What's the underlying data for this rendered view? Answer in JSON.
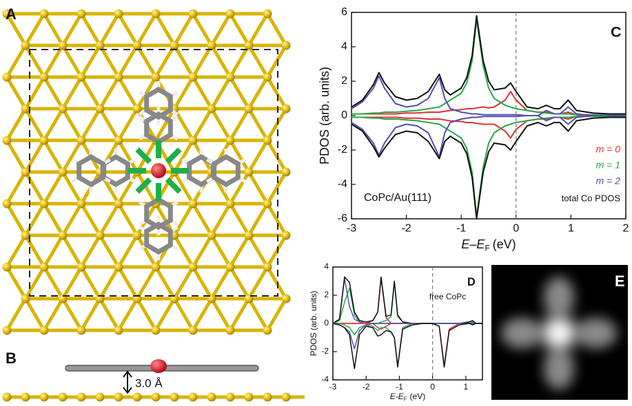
{
  "figure": {
    "panel_labels": [
      "A",
      "B",
      "E"
    ],
    "distance_label": "3.0 Å"
  },
  "chart_data": [
    {
      "type": "line",
      "panel_label": "C",
      "annotation": "CoPc/Au(111)",
      "y_label": "PDOS (arb. units)",
      "x_label": {
        "text": "E–E",
        "subscript": "F",
        "unit": "(eV)"
      },
      "xlim": [
        -3,
        2
      ],
      "xticks": [
        -3,
        -2,
        -1,
        0,
        1,
        2
      ],
      "ylim": [
        -6,
        6
      ],
      "yticks": [
        -6,
        -4,
        -2,
        0,
        2,
        4,
        6
      ],
      "reference_line_x": 0,
      "legend": "lower right",
      "x": [
        -3,
        -2.8,
        -2.6,
        -2.5,
        -2.4,
        -2.2,
        -2.0,
        -1.8,
        -1.6,
        -1.5,
        -1.4,
        -1.3,
        -1.2,
        -1.0,
        -0.9,
        -0.8,
        -0.72,
        -0.6,
        -0.5,
        -0.4,
        -0.2,
        -0.1,
        0,
        0.2,
        0.4,
        0.55,
        0.7,
        0.8,
        0.95,
        1.1,
        1.4,
        1.7,
        2.0
      ],
      "series": [
        {
          "name": "m = 0",
          "color": "#e03030",
          "values": [
            0.1,
            0.1,
            0.1,
            0.1,
            0.1,
            0.1,
            0.15,
            0.15,
            0.2,
            0.2,
            0.2,
            0.25,
            0.3,
            0.35,
            0.4,
            0.4,
            0.45,
            0.5,
            0.45,
            0.5,
            0.9,
            1.4,
            0.9,
            0.3,
            0.2,
            0.2,
            0.1,
            0.1,
            0.2,
            0.05,
            0,
            0,
            0
          ]
        },
        {
          "name": "m = 1",
          "color": "#2aa84a",
          "values": [
            0.1,
            0.1,
            0.15,
            0.15,
            0.2,
            0.2,
            0.25,
            0.3,
            0.4,
            0.45,
            0.5,
            0.7,
            0.9,
            1.3,
            1.9,
            3.2,
            5.6,
            2.9,
            1.6,
            1.0,
            0.6,
            0.5,
            0.4,
            0.3,
            0.2,
            0.15,
            0.1,
            0.1,
            0.1,
            0.05,
            0.05,
            0.05,
            0.05
          ]
        },
        {
          "name": "m = 2",
          "color": "#5050b0",
          "values": [
            0.4,
            0.8,
            1.6,
            2.3,
            1.6,
            0.7,
            0.5,
            0.6,
            1.0,
            1.6,
            2.2,
            1.0,
            0.4,
            0.2,
            0.15,
            0.1,
            0.1,
            0.05,
            0.05,
            0.05,
            0.05,
            0.05,
            0.05,
            0,
            0,
            0.3,
            0.1,
            0.1,
            0.5,
            0.1,
            0,
            0,
            0
          ]
        },
        {
          "name": "total Co PDOS",
          "color": "#111111",
          "values": [
            0.5,
            0.9,
            1.8,
            2.5,
            1.9,
            1.1,
            0.9,
            1.0,
            1.4,
            1.9,
            2.4,
            1.5,
            1.2,
            1.6,
            2.2,
            3.5,
            5.8,
            3.2,
            2.0,
            1.5,
            1.6,
            1.9,
            1.4,
            0.5,
            0.4,
            0.6,
            0.4,
            0.4,
            0.9,
            0.3,
            0.15,
            0.1,
            0.1
          ]
        },
        {
          "color": "#e03030",
          "values": [
            -0.1,
            -0.1,
            -0.1,
            -0.1,
            -0.1,
            -0.1,
            -0.15,
            -0.15,
            -0.2,
            -0.2,
            -0.2,
            -0.25,
            -0.3,
            -0.35,
            -0.4,
            -0.4,
            -0.45,
            -0.5,
            -0.5,
            -0.5,
            -0.9,
            -1.3,
            -0.8,
            -0.3,
            -0.2,
            -0.2,
            -0.1,
            -0.1,
            -0.2,
            -0.05,
            0,
            0,
            0
          ]
        },
        {
          "color": "#2aa84a",
          "values": [
            -0.1,
            -0.1,
            -0.15,
            -0.15,
            -0.2,
            -0.2,
            -0.25,
            -0.3,
            -0.4,
            -0.45,
            -0.5,
            -0.7,
            -0.9,
            -1.3,
            -1.9,
            -3.3,
            -5.9,
            -3.0,
            -1.6,
            -1.0,
            -0.6,
            -0.5,
            -0.4,
            -0.3,
            -0.2,
            -0.15,
            -0.1,
            -0.1,
            -0.1,
            -0.05,
            -0.05,
            -0.05,
            -0.05
          ]
        },
        {
          "color": "#5050b0",
          "values": [
            -0.4,
            -0.8,
            -1.6,
            -2.3,
            -1.6,
            -0.7,
            -0.5,
            -0.6,
            -1.0,
            -1.7,
            -2.4,
            -1.0,
            -0.4,
            -0.2,
            -0.15,
            -0.1,
            -0.1,
            -0.05,
            -0.05,
            -0.05,
            -0.05,
            -0.05,
            -0.05,
            0,
            0,
            -0.3,
            -0.1,
            -0.1,
            -0.5,
            -0.1,
            0,
            0,
            0
          ]
        },
        {
          "color": "#111111",
          "values": [
            -0.5,
            -0.9,
            -1.8,
            -2.4,
            -1.9,
            -1.1,
            -0.9,
            -1.0,
            -1.5,
            -2.0,
            -2.5,
            -1.5,
            -1.2,
            -1.6,
            -2.2,
            -3.6,
            -6.0,
            -3.3,
            -2.1,
            -1.6,
            -1.7,
            -2.0,
            -1.5,
            -0.6,
            -0.4,
            -0.6,
            -0.4,
            -0.4,
            -0.9,
            -0.3,
            -0.15,
            -0.1,
            -0.1
          ]
        }
      ]
    },
    {
      "type": "line",
      "panel_label": "D",
      "annotation": "free CoPc",
      "y_label": "PDOS (arb. units)",
      "x_label": {
        "text": "E-E",
        "subscript": "F",
        "unit": "(eV)"
      },
      "xlim": [
        -3,
        1.5
      ],
      "xticks": [
        -3,
        -2,
        -1,
        0,
        1
      ],
      "ylim": [
        -4,
        4
      ],
      "yticks": [
        -4,
        -2,
        0,
        2,
        4
      ],
      "reference_line_x": 0,
      "x": [
        -3,
        -2.8,
        -2.65,
        -2.5,
        -2.35,
        -2.2,
        -2.0,
        -1.8,
        -1.65,
        -1.55,
        -1.4,
        -1.25,
        -1.15,
        -1.05,
        -0.9,
        -0.6,
        -0.3,
        0,
        0.2,
        0.35,
        0.5,
        0.8,
        1.1,
        1.2,
        1.3,
        1.5
      ],
      "series": [
        {
          "color": "#e03030",
          "values": [
            0,
            0,
            0,
            0,
            0,
            0,
            0,
            0.2,
            0.8,
            3.2,
            0.4,
            0,
            0,
            0,
            0,
            0,
            0,
            0,
            0,
            0,
            0,
            0,
            0,
            0,
            0,
            0
          ]
        },
        {
          "color": "#2aa84a",
          "values": [
            0,
            0.2,
            1.5,
            2.5,
            0.6,
            0.1,
            0,
            0,
            0,
            0.1,
            0.2,
            0.5,
            2.9,
            0.5,
            0.1,
            0,
            0,
            0,
            0,
            0,
            0,
            0,
            0,
            0.1,
            0,
            0
          ]
        },
        {
          "color": "#5050b0",
          "values": [
            0,
            0.3,
            3.2,
            1.2,
            0.3,
            0.1,
            0,
            0,
            0,
            0,
            0,
            0,
            0,
            0,
            0,
            0,
            0,
            0,
            0,
            0,
            0,
            0,
            0.1,
            0.2,
            0,
            0
          ]
        },
        {
          "color": "#111111",
          "values": [
            0,
            0.3,
            3.3,
            2.9,
            0.8,
            0.2,
            0.1,
            0.2,
            0.8,
            3.3,
            0.5,
            0.6,
            3.0,
            0.6,
            0.1,
            0,
            0,
            0,
            0,
            0,
            0,
            0,
            0.1,
            0.2,
            0,
            0
          ]
        },
        {
          "color": "#e03030",
          "values": [
            0,
            0,
            0,
            0,
            0,
            0,
            0,
            0,
            -0.3,
            -0.4,
            -0.2,
            0,
            0,
            0,
            0,
            0,
            0,
            0,
            -0.2,
            -3.0,
            -0.4,
            0,
            0,
            0,
            0,
            0
          ]
        },
        {
          "color": "#2aa84a",
          "values": [
            0,
            0,
            -0.1,
            -0.3,
            -0.8,
            -0.3,
            -0.1,
            -0.2,
            -0.5,
            -0.3,
            -0.3,
            -0.6,
            -1.0,
            -3.0,
            -0.3,
            0,
            0,
            0,
            0,
            0,
            0,
            0,
            0,
            0,
            0,
            0
          ]
        },
        {
          "color": "#5050b0",
          "values": [
            0,
            -0.1,
            -0.3,
            -0.6,
            -1.8,
            -0.5,
            -0.1,
            0,
            0,
            0,
            0,
            0,
            0,
            0,
            0,
            0,
            0,
            0,
            0,
            0,
            0,
            0,
            0,
            0,
            0,
            0
          ]
        },
        {
          "color": "#111111",
          "values": [
            0,
            -0.1,
            -0.3,
            -0.8,
            -3.2,
            -0.8,
            -0.2,
            -0.3,
            -0.9,
            -0.8,
            -0.5,
            -0.6,
            -1.0,
            -3.1,
            -0.4,
            -0.1,
            0,
            0,
            -0.2,
            -3.1,
            -0.5,
            -0.1,
            0,
            -0.1,
            0,
            0
          ]
        }
      ]
    }
  ]
}
